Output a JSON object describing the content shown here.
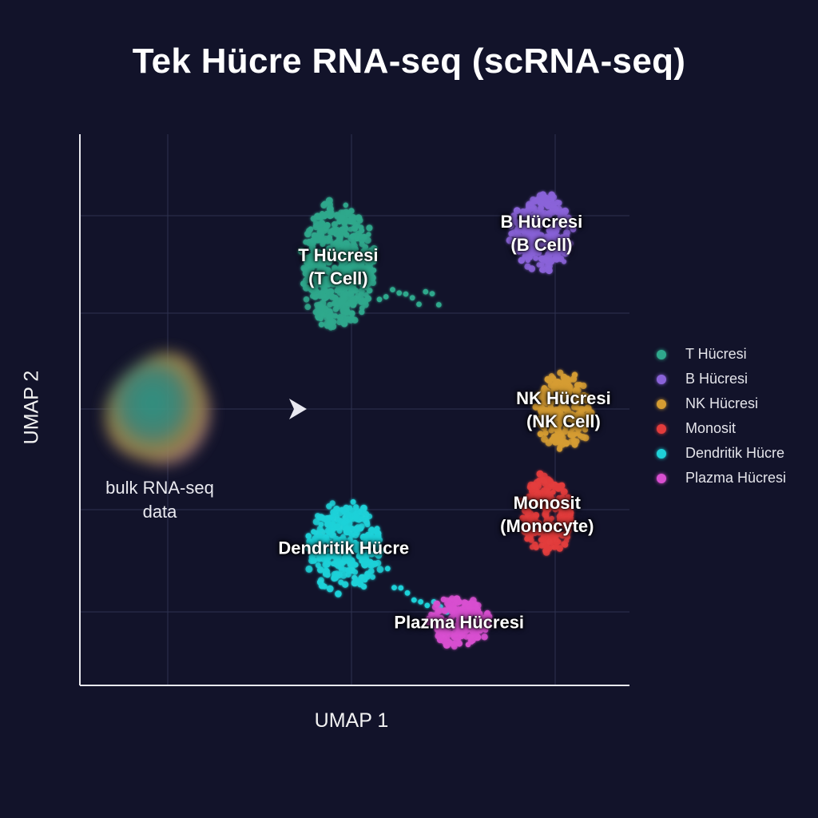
{
  "title": "Tek Hücre RNA-seq (scRNA-seq)",
  "bulk": {
    "line1": "bulk RNA-seq",
    "line2": "data"
  },
  "chart_data": {
    "type": "scatter",
    "title": "Tek Hücre RNA-seq (scRNA-seq)",
    "xlabel": "UMAP 1",
    "ylabel": "UMAP 2",
    "xlim": [
      0,
      10
    ],
    "ylim": [
      0,
      10
    ],
    "grid": true,
    "legend_position": "right",
    "series": [
      {
        "name": "T Hücresi",
        "label_line1": "T Hücresi",
        "label_line2": "(T Cell)",
        "color": "#2fa88c",
        "center": [
          4.7,
          7.6
        ],
        "spread": [
          0.65,
          1.15
        ],
        "count": 480
      },
      {
        "name": "B Hücresi",
        "label_line1": "B Hücresi",
        "label_line2": "(B Cell)",
        "color": "#8a63d9",
        "center": [
          8.4,
          8.2
        ],
        "spread": [
          0.55,
          0.7
        ],
        "count": 260
      },
      {
        "name": "NK Hücresi",
        "label_line1": "NK Hücresi",
        "label_line2": "(NK Cell)",
        "color": "#d59c32",
        "center": [
          8.8,
          5.0
        ],
        "spread": [
          0.5,
          0.7
        ],
        "count": 220
      },
      {
        "name": "Monosit",
        "label_line1": "Monosit",
        "label_line2": "(Monocyte)",
        "color": "#e23c3c",
        "center": [
          8.5,
          3.1
        ],
        "spread": [
          0.5,
          0.7
        ],
        "count": 220
      },
      {
        "name": "Dendritik Hücre",
        "label_line1": "Dendritik Hücre",
        "label_line2": "",
        "color": "#1fd1d8",
        "center": [
          4.8,
          2.5
        ],
        "spread": [
          0.7,
          0.8
        ],
        "count": 300
      },
      {
        "name": "Plazma Hücresi",
        "label_line1": "Plazma Hücresi",
        "label_line2": "",
        "color": "#d84fd0",
        "center": [
          6.9,
          1.15
        ],
        "spread": [
          0.55,
          0.45
        ],
        "count": 180
      }
    ]
  }
}
